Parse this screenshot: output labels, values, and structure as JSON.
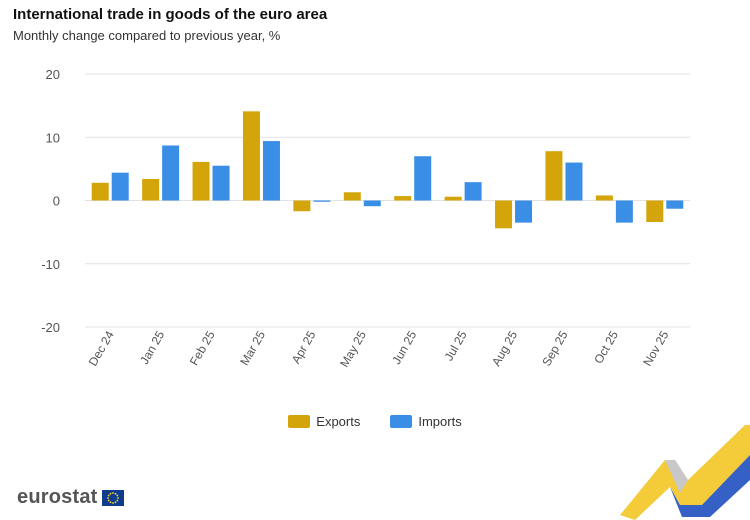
{
  "header": {
    "title": "International trade in goods of the euro area",
    "subtitle": "Monthly change compared to previous year, %"
  },
  "legend": {
    "exports_label": "Exports",
    "imports_label": "Imports"
  },
  "branding": {
    "logo_text": "eurostat",
    "logo_icon": "eu-flag-icon"
  },
  "colors": {
    "exports": "#d4a50b",
    "imports": "#3a8ee6",
    "grid": "#e2e2e2",
    "axis_text": "#555555"
  },
  "chart_data": {
    "type": "bar",
    "title": "International trade in goods of the euro area",
    "subtitle": "Monthly change compared to previous year, %",
    "xlabel": "",
    "ylabel": "",
    "categories": [
      "Dec 24",
      "Jan 25",
      "Feb 25",
      "Mar 25",
      "Apr 25",
      "May 25",
      "Jun 25",
      "Jul 25",
      "Aug 25",
      "Sep 25",
      "Oct 25",
      "Nov 25"
    ],
    "series": [
      {
        "name": "Exports",
        "values": [
          2.8,
          3.4,
          6.1,
          14.1,
          -1.7,
          1.3,
          0.7,
          0.6,
          -4.4,
          7.8,
          0.8,
          -3.4
        ]
      },
      {
        "name": "Imports",
        "values": [
          4.4,
          8.7,
          5.5,
          9.4,
          -0.2,
          -0.9,
          7.0,
          2.9,
          -3.5,
          6.0,
          -3.5,
          -1.3
        ]
      }
    ],
    "ylim": [
      -20,
      20
    ],
    "yticks": [
      20,
      10,
      0,
      -10,
      -20
    ],
    "grid": true,
    "legend_position": "bottom"
  }
}
